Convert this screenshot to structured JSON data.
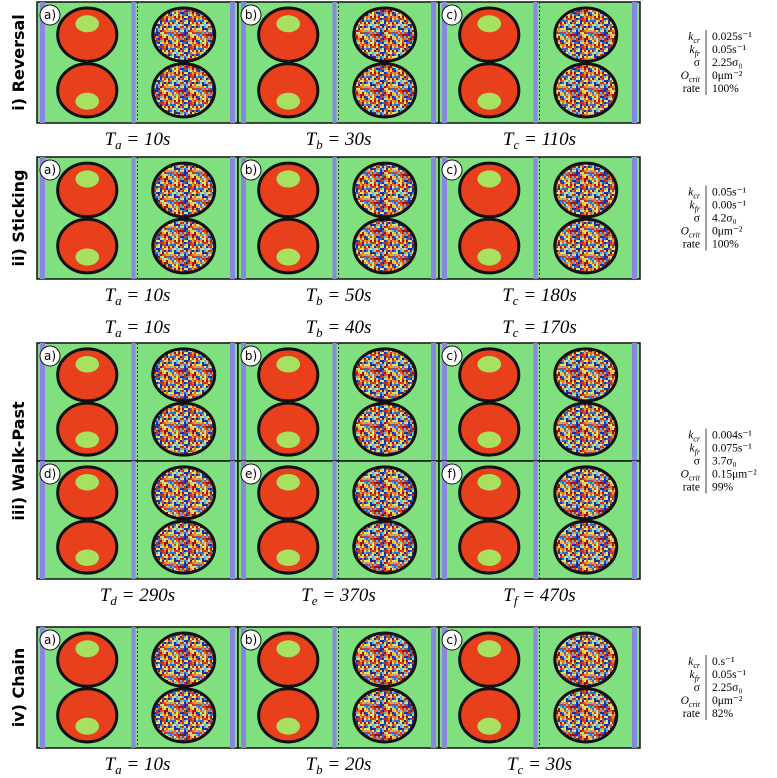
{
  "panels": [
    {
      "label": "i) Reversal",
      "rows": [
        {
          "letters": [
            "a)",
            "b)",
            "c)"
          ],
          "times": [
            {
              "symbol": "T",
              "sub": "a",
              "rest": " = 10s"
            },
            {
              "symbol": "T",
              "sub": "b",
              "rest": " = 30s"
            },
            {
              "symbol": "T",
              "sub": "c",
              "rest": " = 110s"
            }
          ]
        }
      ],
      "params": [
        {
          "key": {
            "base": "k",
            "sub": "cr"
          },
          "value": "0.025s⁻¹"
        },
        {
          "key": {
            "base": "k",
            "sub": "fr"
          },
          "value": "0.05s⁻¹"
        },
        {
          "key": {
            "base": "σ"
          },
          "value": "2.25σ₀"
        },
        {
          "key": {
            "base": "O",
            "sub": "crit"
          },
          "value": "0μm⁻²"
        },
        {
          "key": {
            "base": "rate"
          },
          "value": "100%"
        }
      ]
    },
    {
      "label": "ii) Sticking",
      "rows": [
        {
          "letters": [
            "a)",
            "b)",
            "c)"
          ],
          "times": [
            {
              "symbol": "T",
              "sub": "a",
              "rest": " = 10s"
            },
            {
              "symbol": "T",
              "sub": "b",
              "rest": " = 50s"
            },
            {
              "symbol": "T",
              "sub": "c",
              "rest": " = 180s"
            }
          ]
        }
      ],
      "params": [
        {
          "key": {
            "base": "k",
            "sub": "cr"
          },
          "value": "0.05s⁻¹"
        },
        {
          "key": {
            "base": "k",
            "sub": "fr"
          },
          "value": "0.00s⁻¹"
        },
        {
          "key": {
            "base": "σ"
          },
          "value": "4.2σ₀"
        },
        {
          "key": {
            "base": "O",
            "sub": "crit"
          },
          "value": "0μm⁻²"
        },
        {
          "key": {
            "base": "rate"
          },
          "value": "100%"
        }
      ]
    },
    {
      "label": "iii) Walk-Past",
      "rows": [
        {
          "letters": [
            "a)",
            "b)",
            "c)"
          ],
          "times": [
            {
              "symbol": "T",
              "sub": "a",
              "rest": " = 10s"
            },
            {
              "symbol": "T",
              "sub": "b",
              "rest": " = 40s"
            },
            {
              "symbol": "T",
              "sub": "c",
              "rest": " = 170s"
            }
          ]
        },
        {
          "letters": [
            "d)",
            "e)",
            "f)"
          ],
          "times": [
            {
              "symbol": "T",
              "sub": "d",
              "rest": " = 290s"
            },
            {
              "symbol": "T",
              "sub": "e",
              "rest": " = 370s"
            },
            {
              "symbol": "T",
              "sub": "f",
              "rest": " = 470s"
            }
          ]
        }
      ],
      "params": [
        {
          "key": {
            "base": "k",
            "sub": "cr"
          },
          "value": "0.004s⁻¹"
        },
        {
          "key": {
            "base": "k",
            "sub": "fr"
          },
          "value": "0.075s⁻¹"
        },
        {
          "key": {
            "base": "σ"
          },
          "value": "3.7σ₀"
        },
        {
          "key": {
            "base": "O",
            "sub": "crit"
          },
          "value": "0.15μm⁻²"
        },
        {
          "key": {
            "base": "rate"
          },
          "value": "99%"
        }
      ]
    },
    {
      "label": "iv) Chain",
      "rows": [
        {
          "letters": [
            "a)",
            "b)",
            "c)"
          ],
          "times": [
            {
              "symbol": "T",
              "sub": "a",
              "rest": " = 10s"
            },
            {
              "symbol": "T",
              "sub": "b",
              "rest": " = 20s"
            },
            {
              "symbol": "T",
              "sub": "c",
              "rest": " = 30s"
            }
          ]
        }
      ],
      "params": [
        {
          "key": {
            "base": "k",
            "sub": "cr"
          },
          "value": "0.s⁻¹"
        },
        {
          "key": {
            "base": "k",
            "sub": "fr"
          },
          "value": "0.05s⁻¹"
        },
        {
          "key": {
            "base": "σ"
          },
          "value": "2.25σ₀"
        },
        {
          "key": {
            "base": "O",
            "sub": "crit"
          },
          "value": "0μm⁻²"
        },
        {
          "key": {
            "base": "rate"
          },
          "value": "82%"
        }
      ]
    }
  ]
}
